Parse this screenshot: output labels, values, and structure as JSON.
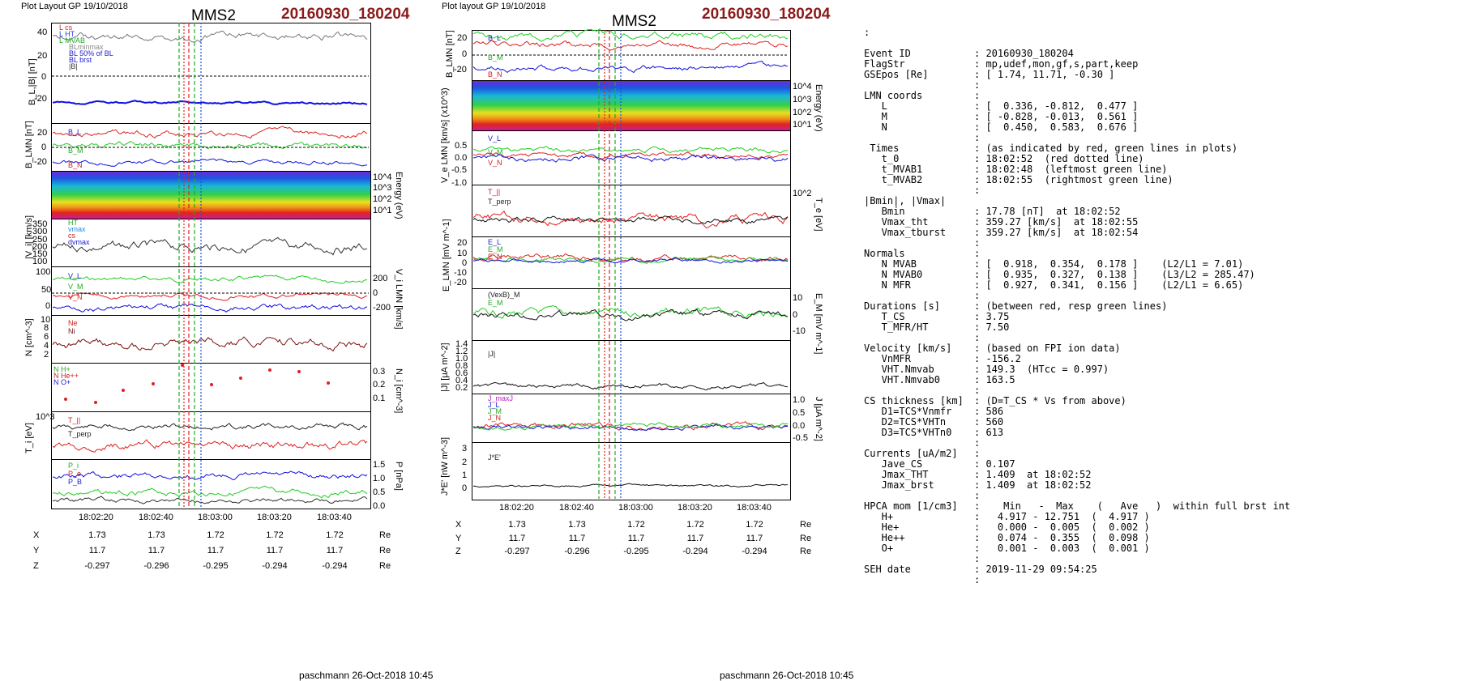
{
  "header": {
    "left_plot_label": "Plot Layout GP 19/10/2018",
    "right_plot_label": "Plot layout GP 19/10/2018",
    "spacecraft": "MMS2",
    "event": "20160930_180204",
    "footer": "paschmann 26-Oct-2018 10:45"
  },
  "colors": {
    "event_red": "#8b1a1a",
    "trace_blue": "#1010e0",
    "trace_green": "#22cc22",
    "trace_red": "#e02020",
    "t0_red": "#e02020",
    "mvab_green": "#22aa22",
    "ht_blue": "#1a4ee0"
  },
  "time_axis": {
    "ticks": [
      "18:02:20",
      "18:02:40",
      "18:03:00",
      "18:03:20",
      "18:03:40"
    ]
  },
  "position_table": {
    "rows": [
      {
        "label": "X",
        "values": [
          "1.73",
          "1.73",
          "1.72",
          "1.72",
          "1.72"
        ],
        "unit": "Re"
      },
      {
        "label": "Y",
        "values": [
          "11.7",
          "11.7",
          "11.7",
          "11.7",
          "11.7"
        ],
        "unit": "Re"
      },
      {
        "label": "Z",
        "values": [
          "-0.297",
          "-0.296",
          "-0.295",
          "-0.294",
          "-0.294"
        ],
        "unit": "Re"
      }
    ]
  },
  "left_panels": {
    "bl": {
      "ylabel": "B_L,|B| [nT]",
      "ticks": [
        "40",
        "20",
        "0",
        "-20"
      ],
      "legend": [
        "L cs",
        "L HT",
        "L MVAB",
        "BLminmax",
        "BL 50% of BL",
        "BL brst",
        "|B|"
      ]
    },
    "blmn": {
      "ylabel": "B_LMN [nT]",
      "ticks": [
        "20",
        "0",
        "-20"
      ],
      "legend": [
        "B_L",
        "B_M",
        "B_N"
      ]
    },
    "espec": {
      "rlabel": "Energy (eV)",
      "ticks": [
        "10^4",
        "10^3",
        "10^2",
        "10^1"
      ]
    },
    "vi": {
      "ylabel": "|V_i| [km/s]",
      "ticks": [
        "350",
        "300",
        "250",
        "200",
        "150",
        "100"
      ],
      "legend": [
        "HT",
        "vmax",
        "cs",
        "dvmax"
      ]
    },
    "vilmn": {
      "ticks_left": [
        "100",
        "50",
        "0"
      ],
      "ticks_right": [
        "200",
        "0",
        "-200"
      ],
      "rlabel": "V_i LMN [km/s]",
      "legend": [
        "V_L",
        "V_M",
        "V_N"
      ]
    },
    "n": {
      "ylabel": "N [cm^-3]",
      "ticks": [
        "10",
        "8",
        "6",
        "4",
        "2"
      ],
      "legend": [
        "Ne",
        "Ni"
      ]
    },
    "hpca": {
      "rlabel": "N_i [cm^-3]",
      "ticks": [
        "0.3",
        "0.2",
        "0.1"
      ],
      "legend": [
        "N H+",
        "N He++",
        "N O+"
      ]
    },
    "ti": {
      "ylabel": "T_i [eV]",
      "ticks": [
        "10^3"
      ],
      "legend": [
        "T_||",
        "T_perp"
      ]
    },
    "p": {
      "rlabel": "P [nPa]",
      "ticks": [
        "1.5",
        "1.0",
        "0.5",
        "0.0"
      ],
      "legend": [
        "P_i",
        "P_e",
        "P_B"
      ]
    }
  },
  "right_panels": {
    "blmn": {
      "ylabel": "B_LMN [nT]",
      "ticks": [
        "20",
        "0",
        "-20"
      ],
      "legend": [
        "B_L",
        "B_M",
        "B_N"
      ]
    },
    "espec": {
      "rlabel": "Energy (eV)",
      "ticks": [
        "10^4",
        "10^3",
        "10^2",
        "10^1"
      ]
    },
    "ve": {
      "ylabel": "V_e LMN [km/s] (x10^3)",
      "ticks": [
        "0.5",
        "0.0",
        "-0.5",
        "-1.0"
      ],
      "legend": [
        "V_L",
        "V_M",
        "V_N"
      ]
    },
    "te": {
      "rlabel": "T_e [eV]",
      "ticks": [
        "10^2"
      ],
      "legend": [
        "T_||",
        "T_perp"
      ]
    },
    "elmn": {
      "ylabel": "E_LMN [mV m^-1]",
      "ticks": [
        "20",
        "10",
        "0",
        "-10",
        "-20"
      ],
      "legend": [
        "E_L",
        "E_M",
        "E_N"
      ]
    },
    "em": {
      "rlabel": "E_M [mV m^-1]",
      "ticks": [
        "10",
        "0",
        "-10"
      ],
      "legend": [
        "(VexB)_M",
        "E_M"
      ]
    },
    "j": {
      "ylabel": "|J| [μA m^-2]",
      "ticks": [
        "1.4",
        "1.2",
        "1.0",
        "0.8",
        "0.6",
        "0.4",
        "0.2"
      ],
      "legend": [
        "|J|"
      ]
    },
    "jlmn": {
      "rlabel": "J [μA m^-2]",
      "ticks": [
        "1.0",
        "0.5",
        "0.0",
        "-0.5"
      ],
      "legend": [
        "J_maxJ",
        "J_L",
        "J_M",
        "J_N"
      ]
    },
    "je": {
      "ylabel": "J*E' [nW m^-3]",
      "ticks": [
        "3",
        "2",
        "1",
        "0"
      ],
      "legend": [
        "J*E'"
      ]
    }
  },
  "info": {
    "lead": ":",
    "lines": [
      {
        "k": "Event ID",
        "v": ": 20160930_180204"
      },
      {
        "k": "FlagStr",
        "v": ": mp,udef,mon,gf,s,part,keep"
      },
      {
        "k": "GSEpos [Re]",
        "v": ": [ 1.74, 11.71, -0.30 ]"
      },
      {
        "k": "",
        "v": ":"
      },
      {
        "k": "LMN coords",
        "v": ":"
      },
      {
        "k": "   L",
        "v": ": [  0.336, -0.812,  0.477 ]"
      },
      {
        "k": "   M",
        "v": ": [ -0.828, -0.013,  0.561 ]"
      },
      {
        "k": "   N",
        "v": ": [  0.450,  0.583,  0.676 ]"
      },
      {
        "k": "",
        "v": ":"
      },
      {
        "k": " Times",
        "v": ": (as indicated by red, green lines in plots)"
      },
      {
        "k": "   t_0",
        "v": ": 18:02:52  (red dotted line)"
      },
      {
        "k": "   t_MVAB1",
        "v": ": 18:02:48  (leftmost green line)"
      },
      {
        "k": "   t_MVAB2",
        "v": ": 18:02:55  (rightmost green line)"
      },
      {
        "k": "",
        "v": ":"
      },
      {
        "k": "|Bmin|, |Vmax|",
        "v": ""
      },
      {
        "k": "   Bmin",
        "v": ": 17.78 [nT]  at 18:02:52"
      },
      {
        "k": "   Vmax_tht",
        "v": ": 359.27 [km/s]  at 18:02:55"
      },
      {
        "k": "   Vmax_tburst",
        "v": ": 359.27 [km/s]  at 18:02:54"
      },
      {
        "k": "",
        "v": ":"
      },
      {
        "k": "Normals",
        "v": ":"
      },
      {
        "k": "   N MVAB",
        "v": ": [  0.918,  0.354,  0.178 ]    (L2/L1 = 7.01)"
      },
      {
        "k": "   N MVAB0",
        "v": ": [  0.935,  0.327,  0.138 ]    (L3/L2 = 285.47)"
      },
      {
        "k": "   N MFR",
        "v": ": [  0.927,  0.341,  0.156 ]    (L2/L1 = 6.65)"
      },
      {
        "k": "",
        "v": ":"
      },
      {
        "k": "Durations [s]",
        "v": ": (between red, resp green lines)"
      },
      {
        "k": "   T_CS",
        "v": ": 3.75"
      },
      {
        "k": "   T_MFR/HT",
        "v": ": 7.50"
      },
      {
        "k": "",
        "v": ":"
      },
      {
        "k": "Velocity [km/s]",
        "v": ": (based on FPI ion data)"
      },
      {
        "k": "   VnMFR",
        "v": ": -156.2"
      },
      {
        "k": "   VHT.Nmvab",
        "v": ": 149.3  (HTcc = 0.997)"
      },
      {
        "k": "   VHT.Nmvab0",
        "v": ": 163.5"
      },
      {
        "k": "",
        "v": ":"
      },
      {
        "k": "CS thickness [km]",
        "v": ": (D=T_CS * Vs from above)"
      },
      {
        "k": "   D1=TCS*Vnmfr",
        "v": ": 586"
      },
      {
        "k": "   D2=TCS*VHTn",
        "v": ": 560"
      },
      {
        "k": "   D3=TCS*VHTn0",
        "v": ": 613"
      },
      {
        "k": "",
        "v": ":"
      },
      {
        "k": "Currents [uA/m2]",
        "v": ":"
      },
      {
        "k": "   Jave_CS",
        "v": ": 0.107"
      },
      {
        "k": "   Jmax_THT",
        "v": ": 1.409  at 18:02:52"
      },
      {
        "k": "   Jmax_brst",
        "v": ": 1.409  at 18:02:52"
      },
      {
        "k": "",
        "v": ":"
      },
      {
        "k": "HPCA mom [1/cm3]",
        "v": ":    Min   -  Max    (   Ave   )  within full brst int"
      },
      {
        "k": "   H+",
        "v": ":   4.917 - 12.751  (  4.917 )"
      },
      {
        "k": "   He+",
        "v": ":   0.000 -  0.005  (  0.002 )"
      },
      {
        "k": "   He++",
        "v": ":   0.074 -  0.355  (  0.098 )"
      },
      {
        "k": "   O+",
        "v": ":   0.001 -  0.003  (  0.001 )"
      },
      {
        "k": "",
        "v": ":"
      },
      {
        "k": "SEH date",
        "v": ": 2019-11-29 09:54:25"
      },
      {
        "k": "",
        "v": ":"
      }
    ]
  }
}
